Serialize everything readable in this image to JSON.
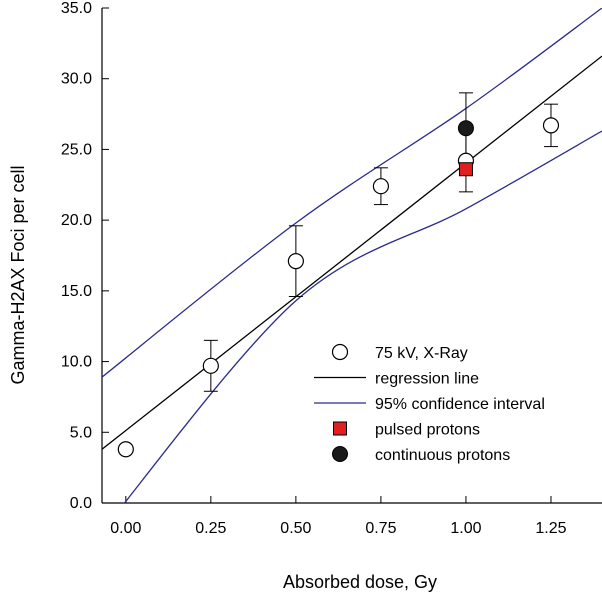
{
  "chart_data": {
    "type": "scatter",
    "xlabel": "Absorbed dose, Gy",
    "ylabel": "Gamma-H2AX Foci per cell",
    "xlim": [
      -0.07,
      1.4
    ],
    "ylim": [
      0,
      35
    ],
    "x_ticks": [
      0.0,
      0.25,
      0.5,
      0.75,
      1.0,
      1.25
    ],
    "x_tick_labels": [
      "0.00",
      "0.25",
      "0.50",
      "0.75",
      "1.00",
      "1.25"
    ],
    "y_ticks": [
      0,
      5,
      10,
      15,
      20,
      25,
      30,
      35
    ],
    "y_tick_labels": [
      "0.0",
      "5.0",
      "10.0",
      "15.0",
      "20.0",
      "25.0",
      "30.0",
      "35.0"
    ],
    "grid": false,
    "legend_position": "bottom-right",
    "series": [
      {
        "name": "75 kV, X-Ray",
        "marker": "open-circle",
        "color": "#000000",
        "points": [
          {
            "x": 0.0,
            "y": 3.8,
            "err": null
          },
          {
            "x": 0.25,
            "y": 9.7,
            "err": 1.8
          },
          {
            "x": 0.5,
            "y": 17.1,
            "err": 2.5
          },
          {
            "x": 0.75,
            "y": 22.4,
            "err": 1.3
          },
          {
            "x": 1.0,
            "y": 24.2,
            "err": 2.2
          },
          {
            "x": 1.25,
            "y": 26.7,
            "err": 1.5
          }
        ]
      },
      {
        "name": "regression line",
        "style": "line",
        "color": "#000000",
        "x": [
          -0.07,
          1.4
        ],
        "y": [
          3.8,
          31.6
        ]
      },
      {
        "name": "95% confidence interval",
        "style": "line",
        "color": "#2b2b8c",
        "upper": {
          "x": [
            -0.07,
            0.5,
            1.0,
            1.4
          ],
          "y": [
            8.9,
            19.8,
            27.9,
            35.0
          ]
        },
        "lower": {
          "x": [
            -0.07,
            0.5,
            1.0,
            1.4
          ],
          "y": [
            -2.0,
            14.3,
            20.8,
            26.3
          ]
        }
      },
      {
        "name": "pulsed protons",
        "marker": "filled-square",
        "color": "#e02020",
        "points": [
          {
            "x": 1.0,
            "y": 23.6
          }
        ]
      },
      {
        "name": "continuous protons",
        "marker": "filled-circle",
        "color": "#1a1a1a",
        "points": [
          {
            "x": 1.0,
            "y": 26.5,
            "err": 2.5
          }
        ]
      }
    ]
  }
}
